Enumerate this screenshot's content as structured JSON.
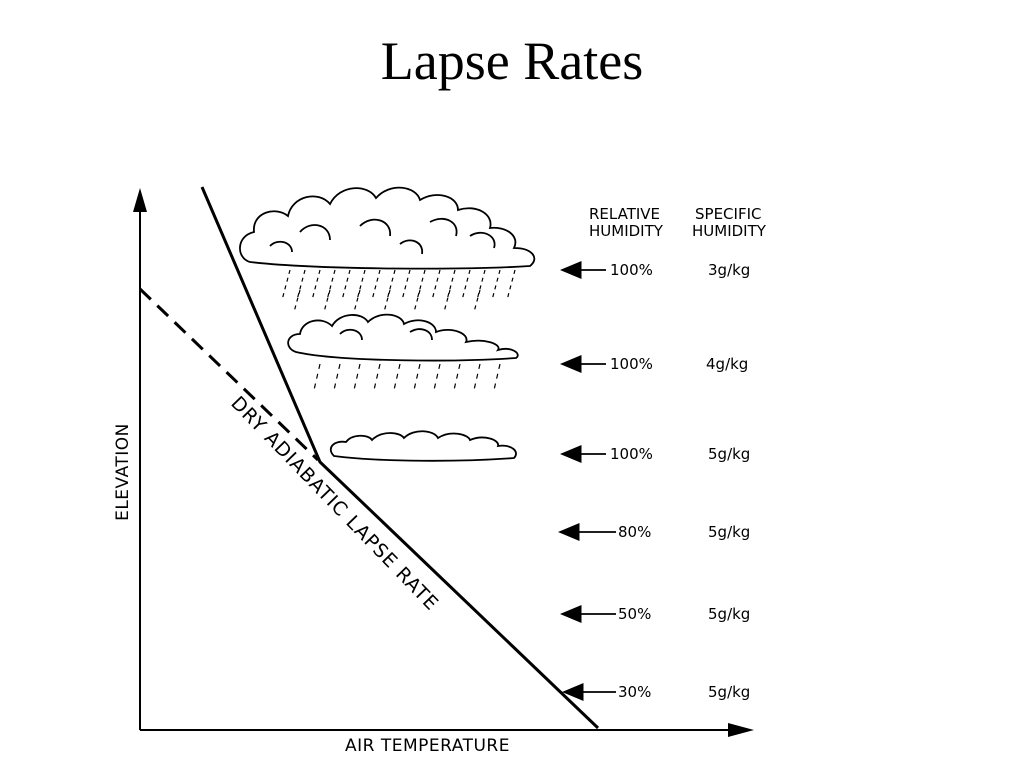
{
  "title": "Lapse Rates",
  "axes": {
    "x_label": "AIR TEMPERATURE",
    "y_label": "ELEVATION"
  },
  "dry_adiabatic_label": "DRY ADIABATIC LAPSE RATE",
  "columns": {
    "relative_humidity": [
      "RELATIVE",
      "HUMIDITY"
    ],
    "specific_humidity": [
      "SPECIFIC",
      "HUMIDITY"
    ]
  },
  "rows": [
    {
      "rh": "100%",
      "sh": "3g/kg"
    },
    {
      "rh": "100%",
      "sh": "4g/kg"
    },
    {
      "rh": "100%",
      "sh": "5g/kg"
    },
    {
      "rh": "80%",
      "sh": "5g/kg"
    },
    {
      "rh": "50%",
      "sh": "5g/kg"
    },
    {
      "rh": "30%",
      "sh": "5g/kg"
    }
  ],
  "clouds": [
    "cumulonimbus",
    "cumulus",
    "stratus"
  ],
  "colors": {
    "ink": "#000000",
    "background": "#ffffff"
  }
}
